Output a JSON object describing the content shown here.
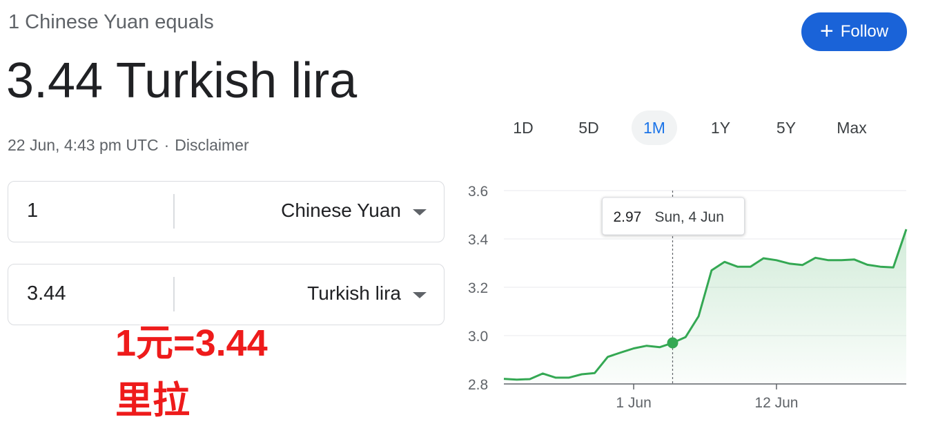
{
  "header": {
    "subtitle": "1 Chinese Yuan equals",
    "rate": "3.44 Turkish lira",
    "timestamp": "22 Jun, 4:43 pm UTC",
    "separator": "·",
    "disclaimer": "Disclaimer",
    "follow_label": "Follow",
    "follow_icon": "plus-icon"
  },
  "converter": {
    "from": {
      "amount": "1",
      "currency": "Chinese Yuan"
    },
    "to": {
      "amount": "3.44",
      "currency": "Turkish lira"
    }
  },
  "overlay": {
    "line1": "1元=3.44",
    "line2": "里拉"
  },
  "ranges": [
    {
      "label": "1D",
      "active": false
    },
    {
      "label": "5D",
      "active": false
    },
    {
      "label": "1M",
      "active": true
    },
    {
      "label": "1Y",
      "active": false
    },
    {
      "label": "5Y",
      "active": false
    },
    {
      "label": "Max",
      "active": false
    }
  ],
  "chart_data": {
    "type": "area",
    "ylim": [
      2.8,
      3.6
    ],
    "yticks": [
      "3.6",
      "3.4",
      "3.2",
      "3.0",
      "2.8"
    ],
    "ytick_values": [
      3.6,
      3.4,
      3.2,
      3.0,
      2.8
    ],
    "xticks": [
      {
        "label": "1 Jun",
        "index": 10
      },
      {
        "label": "12 Jun",
        "index": 21
      }
    ],
    "values": [
      2.821,
      2.818,
      2.82,
      2.843,
      2.826,
      2.826,
      2.84,
      2.845,
      2.912,
      2.93,
      2.947,
      2.958,
      2.952,
      2.97,
      2.994,
      3.08,
      3.27,
      3.305,
      3.285,
      3.285,
      3.32,
      3.312,
      3.298,
      3.292,
      3.322,
      3.312,
      3.312,
      3.315,
      3.293,
      3.285,
      3.282,
      3.44
    ],
    "hover": {
      "index": 13,
      "value": "2.97",
      "date": "Sun, 4 Jun"
    },
    "line_color": "#34a853",
    "grid": true
  }
}
